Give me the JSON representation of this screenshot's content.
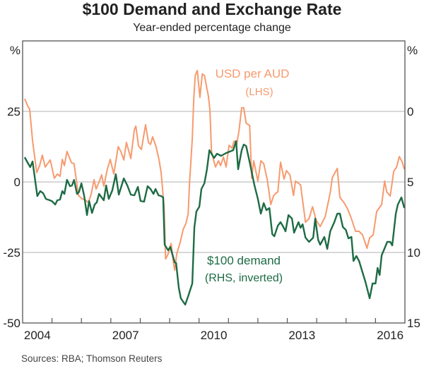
{
  "chart_data": {
    "type": "line",
    "title": "$100 Demand and Exchange Rate",
    "subtitle": "Year-ended percentage change",
    "source": "Sources:   RBA; Thomson Reuters",
    "left_axis": {
      "unit": "%",
      "ylim": [
        -50,
        50
      ],
      "ticks": [
        25,
        0,
        -25,
        -50
      ],
      "tick_labels": [
        "25",
        "0",
        "-25",
        "-50"
      ]
    },
    "right_axis": {
      "unit": "%",
      "ylim": [
        -5,
        15
      ],
      "inverted": true,
      "ticks": [
        0,
        5,
        10,
        15
      ],
      "tick_labels": [
        "0",
        "5",
        "10",
        "15"
      ]
    },
    "x_axis": {
      "xlim": [
        2004,
        2017
      ],
      "tick_labels": [
        "2004",
        "2007",
        "2010",
        "2013",
        "2016"
      ],
      "label_positions": [
        2004.5,
        2007.5,
        2010.5,
        2013.5,
        2016.5
      ]
    },
    "grid": true,
    "series": [
      {
        "name": "USD per AUD",
        "name_sub": "(LHS)",
        "axis": "left",
        "color": "#F79A6E",
        "points": [
          [
            2004.07,
            29.5
          ],
          [
            2004.17,
            27
          ],
          [
            2004.24,
            25.8
          ],
          [
            2004.34,
            14.5
          ],
          [
            2004.48,
            3.3
          ],
          [
            2004.58,
            5.8
          ],
          [
            2004.67,
            9.5
          ],
          [
            2004.77,
            5.3
          ],
          [
            2004.94,
            7.8
          ],
          [
            2005.08,
            1.3
          ],
          [
            2005.18,
            2.8
          ],
          [
            2005.27,
            2
          ],
          [
            2005.35,
            8
          ],
          [
            2005.42,
            5.8
          ],
          [
            2005.51,
            10.8
          ],
          [
            2005.66,
            6.8
          ],
          [
            2005.75,
            6.5
          ],
          [
            2005.9,
            -4.8
          ],
          [
            2006.02,
            -6
          ],
          [
            2006.12,
            -6.3
          ],
          [
            2006.24,
            -7.3
          ],
          [
            2006.33,
            -4.3
          ],
          [
            2006.43,
            0.8
          ],
          [
            2006.5,
            -2.5
          ],
          [
            2006.6,
            0
          ],
          [
            2006.69,
            2.5
          ],
          [
            2006.76,
            -1.5
          ],
          [
            2006.88,
            4.5
          ],
          [
            2006.98,
            8
          ],
          [
            2007.1,
            2.8
          ],
          [
            2007.25,
            12.5
          ],
          [
            2007.34,
            10.8
          ],
          [
            2007.44,
            7.8
          ],
          [
            2007.53,
            14
          ],
          [
            2007.68,
            8.3
          ],
          [
            2007.8,
            18.5
          ],
          [
            2007.85,
            19.8
          ],
          [
            2007.94,
            12.8
          ],
          [
            2008.04,
            11.5
          ],
          [
            2008.18,
            20.3
          ],
          [
            2008.28,
            14
          ],
          [
            2008.35,
            13.3
          ],
          [
            2008.42,
            16
          ],
          [
            2008.54,
            12.5
          ],
          [
            2008.64,
            7.8
          ],
          [
            2008.71,
            3.3
          ],
          [
            2008.81,
            -8.8
          ],
          [
            2008.86,
            -27.3
          ],
          [
            2008.95,
            -25.5
          ],
          [
            2009.05,
            -21.8
          ],
          [
            2009.12,
            -28
          ],
          [
            2009.17,
            -31.3
          ],
          [
            2009.24,
            -25.5
          ],
          [
            2009.36,
            -21.3
          ],
          [
            2009.46,
            -16.8
          ],
          [
            2009.55,
            -14.8
          ],
          [
            2009.63,
            -11.3
          ],
          [
            2009.67,
            -1.3
          ],
          [
            2009.77,
            15.3
          ],
          [
            2009.82,
            29.5
          ],
          [
            2009.87,
            37.8
          ],
          [
            2009.94,
            39.5
          ],
          [
            2010.03,
            30
          ],
          [
            2010.11,
            38.3
          ],
          [
            2010.18,
            37.8
          ],
          [
            2010.32,
            30.3
          ],
          [
            2010.37,
            25.3
          ],
          [
            2010.42,
            11.3
          ],
          [
            2010.49,
            7.8
          ],
          [
            2010.56,
            5.3
          ],
          [
            2010.66,
            7.5
          ],
          [
            2010.73,
            5.8
          ],
          [
            2010.83,
            8.8
          ],
          [
            2010.92,
            5.3
          ],
          [
            2011.02,
            13
          ],
          [
            2011.12,
            12
          ],
          [
            2011.19,
            14.5
          ],
          [
            2011.28,
            13.3
          ],
          [
            2011.36,
            18.3
          ],
          [
            2011.45,
            26.3
          ],
          [
            2011.52,
            26.3
          ],
          [
            2011.6,
            20.8
          ],
          [
            2011.72,
            20
          ],
          [
            2011.79,
            1.3
          ],
          [
            2011.86,
            7.5
          ],
          [
            2012.0,
            0.3
          ],
          [
            2012.1,
            7.5
          ],
          [
            2012.2,
            6.5
          ],
          [
            2012.32,
            0.8
          ],
          [
            2012.44,
            -8
          ],
          [
            2012.53,
            -5
          ],
          [
            2012.61,
            -4
          ],
          [
            2012.68,
            -3.5
          ],
          [
            2012.77,
            7
          ],
          [
            2012.89,
            1
          ],
          [
            2012.97,
            4
          ],
          [
            2013.09,
            2.5
          ],
          [
            2013.21,
            -4.8
          ],
          [
            2013.28,
            0.3
          ],
          [
            2013.45,
            -1
          ],
          [
            2013.62,
            -14.3
          ],
          [
            2013.74,
            -13
          ],
          [
            2013.86,
            -8.8
          ],
          [
            2013.98,
            -13.5
          ],
          [
            2014.12,
            -15.8
          ],
          [
            2014.29,
            -12.3
          ],
          [
            2014.46,
            -3.8
          ],
          [
            2014.53,
            1.5
          ],
          [
            2014.7,
            4.8
          ],
          [
            2014.79,
            -5.5
          ],
          [
            2014.94,
            -7.5
          ],
          [
            2015.06,
            -9.8
          ],
          [
            2015.18,
            -13
          ],
          [
            2015.32,
            -17.5
          ],
          [
            2015.44,
            -17.5
          ],
          [
            2015.56,
            -18.8
          ],
          [
            2015.71,
            -23.5
          ],
          [
            2015.8,
            -19.8
          ],
          [
            2015.92,
            -18.8
          ],
          [
            2016.04,
            -10.5
          ],
          [
            2016.21,
            -8
          ],
          [
            2016.31,
            0.3
          ],
          [
            2016.38,
            -3.5
          ],
          [
            2016.5,
            -5
          ],
          [
            2016.62,
            3.8
          ],
          [
            2016.72,
            5.3
          ],
          [
            2016.81,
            9
          ],
          [
            2016.91,
            7
          ],
          [
            2016.98,
            4.5
          ]
        ]
      },
      {
        "name": "$100 demand",
        "name_sub": "(RHS, inverted)",
        "axis": "right",
        "color": "#1E6B45",
        "points": [
          [
            2004.07,
            3.25
          ],
          [
            2004.19,
            3.7
          ],
          [
            2004.26,
            3.95
          ],
          [
            2004.34,
            3.55
          ],
          [
            2004.5,
            6
          ],
          [
            2004.6,
            5.65
          ],
          [
            2004.7,
            5.8
          ],
          [
            2004.79,
            6.2
          ],
          [
            2004.99,
            6.35
          ],
          [
            2005.11,
            6.6
          ],
          [
            2005.18,
            6.3
          ],
          [
            2005.27,
            6.25
          ],
          [
            2005.35,
            5.65
          ],
          [
            2005.42,
            5.85
          ],
          [
            2005.51,
            4.85
          ],
          [
            2005.61,
            5.3
          ],
          [
            2005.68,
            5.25
          ],
          [
            2005.75,
            4.85
          ],
          [
            2005.85,
            5.85
          ],
          [
            2005.92,
            5.7
          ],
          [
            2006.0,
            5.1
          ],
          [
            2006.09,
            5.95
          ],
          [
            2006.19,
            7.35
          ],
          [
            2006.26,
            6.35
          ],
          [
            2006.36,
            7.2
          ],
          [
            2006.45,
            6.6
          ],
          [
            2006.52,
            6.45
          ],
          [
            2006.6,
            5.85
          ],
          [
            2006.67,
            6.05
          ],
          [
            2006.76,
            6.3
          ],
          [
            2006.84,
            5.25
          ],
          [
            2006.93,
            6.2
          ],
          [
            2007.05,
            5.6
          ],
          [
            2007.17,
            4.45
          ],
          [
            2007.27,
            5.9
          ],
          [
            2007.44,
            4.75
          ],
          [
            2007.56,
            5.25
          ],
          [
            2007.68,
            5.9
          ],
          [
            2007.8,
            5.95
          ],
          [
            2007.92,
            5.35
          ],
          [
            2008.01,
            6.35
          ],
          [
            2008.13,
            6.4
          ],
          [
            2008.25,
            5.3
          ],
          [
            2008.35,
            5.5
          ],
          [
            2008.45,
            5.85
          ],
          [
            2008.52,
            5.5
          ],
          [
            2008.62,
            5.95
          ],
          [
            2008.71,
            6
          ],
          [
            2008.78,
            6.1
          ],
          [
            2008.83,
            9.45
          ],
          [
            2008.95,
            9.85
          ],
          [
            2009.02,
            9.6
          ],
          [
            2009.17,
            10.7
          ],
          [
            2009.22,
            10.75
          ],
          [
            2009.31,
            12.5
          ],
          [
            2009.38,
            13.25
          ],
          [
            2009.53,
            13.7
          ],
          [
            2009.63,
            13.1
          ],
          [
            2009.77,
            12.2
          ],
          [
            2009.84,
            8.25
          ],
          [
            2009.91,
            7.1
          ],
          [
            2010.01,
            6.75
          ],
          [
            2010.08,
            5.5
          ],
          [
            2010.18,
            5.1
          ],
          [
            2010.27,
            4.1
          ],
          [
            2010.35,
            2.75
          ],
          [
            2010.51,
            3.3
          ],
          [
            2010.61,
            3
          ],
          [
            2010.75,
            3.15
          ],
          [
            2010.92,
            2.95
          ],
          [
            2011.04,
            2.85
          ],
          [
            2011.16,
            2.75
          ],
          [
            2011.26,
            2.1
          ],
          [
            2011.33,
            4.1
          ],
          [
            2011.45,
            2.75
          ],
          [
            2011.52,
            2.35
          ],
          [
            2011.6,
            2.45
          ],
          [
            2011.72,
            3.6
          ],
          [
            2011.88,
            5.2
          ],
          [
            2012.0,
            6.2
          ],
          [
            2012.1,
            7.25
          ],
          [
            2012.2,
            6.5
          ],
          [
            2012.29,
            7
          ],
          [
            2012.39,
            6.85
          ],
          [
            2012.49,
            8.7
          ],
          [
            2012.56,
            8.85
          ],
          [
            2012.68,
            8.1
          ],
          [
            2012.77,
            7.85
          ],
          [
            2012.87,
            8.2
          ],
          [
            2012.94,
            8.5
          ],
          [
            2013.04,
            7.35
          ],
          [
            2013.16,
            7.6
          ],
          [
            2013.23,
            8.6
          ],
          [
            2013.38,
            7.85
          ],
          [
            2013.45,
            8.25
          ],
          [
            2013.52,
            8
          ],
          [
            2013.62,
            8.95
          ],
          [
            2013.74,
            9.25
          ],
          [
            2013.88,
            8.95
          ],
          [
            2013.95,
            7.6
          ],
          [
            2014.05,
            9.1
          ],
          [
            2014.12,
            9.45
          ],
          [
            2014.26,
            8.9
          ],
          [
            2014.36,
            9.75
          ],
          [
            2014.46,
            8.5
          ],
          [
            2014.6,
            7.85
          ],
          [
            2014.7,
            7.25
          ],
          [
            2014.79,
            7.25
          ],
          [
            2014.89,
            8.2
          ],
          [
            2014.99,
            8.4
          ],
          [
            2015.08,
            9
          ],
          [
            2015.18,
            8.9
          ],
          [
            2015.25,
            10.6
          ],
          [
            2015.35,
            10.25
          ],
          [
            2015.44,
            10.6
          ],
          [
            2015.66,
            12.1
          ],
          [
            2015.8,
            13.25
          ],
          [
            2015.9,
            12.2
          ],
          [
            2016.0,
            12.2
          ],
          [
            2016.07,
            11.1
          ],
          [
            2016.14,
            11.6
          ],
          [
            2016.21,
            10.2
          ],
          [
            2016.31,
            9.7
          ],
          [
            2016.4,
            9.25
          ],
          [
            2016.5,
            9.25
          ],
          [
            2016.57,
            9.5
          ],
          [
            2016.69,
            7.25
          ],
          [
            2016.76,
            6.6
          ],
          [
            2016.88,
            6.1
          ],
          [
            2016.98,
            6.85
          ]
        ]
      }
    ]
  }
}
